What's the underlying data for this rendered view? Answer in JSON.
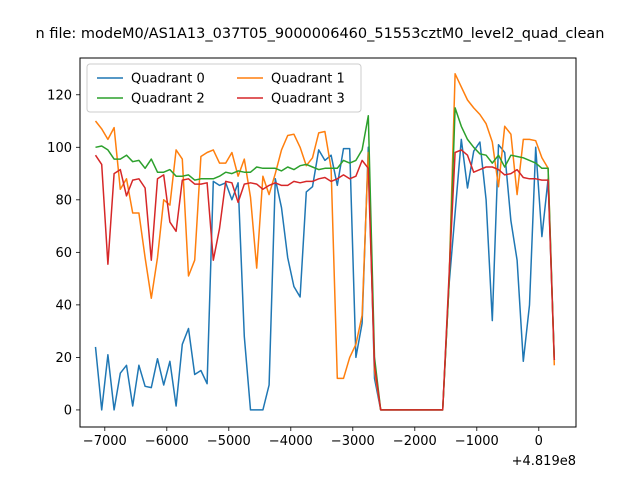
{
  "chart_data": {
    "type": "line",
    "title": "n file: modeM0/AS1A13_037T05_9000006460_51553cztM0_level2_quad_clean",
    "xlabel": "",
    "ylabel": "",
    "x_offset_label": "+4.819e8",
    "xlim": [
      -7400,
      600
    ],
    "ylim": [
      -6.5,
      134
    ],
    "xticks": [
      -7000,
      -6000,
      -5000,
      -4000,
      -3000,
      -2000,
      -1000,
      0
    ],
    "xtick_labels": [
      "−7000",
      "−6000",
      "−5000",
      "−4000",
      "−3000",
      "−2000",
      "−1000",
      "0"
    ],
    "yticks": [
      0,
      20,
      40,
      60,
      80,
      100,
      120
    ],
    "ytick_labels": [
      "0",
      "20",
      "40",
      "60",
      "80",
      "100",
      "120"
    ],
    "grid": false,
    "legend_position": "upper-left",
    "legend_columns": 2,
    "series": [
      {
        "name": "Quadrant 0",
        "color": "#1f77b4",
        "x": [
          -7150,
          -7050,
          -6950,
          -6850,
          -6750,
          -6650,
          -6550,
          -6450,
          -6350,
          -6250,
          -6150,
          -6050,
          -5950,
          -5850,
          -5750,
          -5650,
          -5550,
          -5450,
          -5350,
          -5250,
          -5150,
          -5050,
          -4950,
          -4850,
          -4750,
          -4650,
          -4550,
          -4450,
          -4350,
          -4250,
          -4150,
          -4050,
          -3950,
          -3850,
          -3750,
          -3650,
          -3550,
          -3450,
          -3350,
          -3250,
          -3150,
          -3050,
          -2950,
          -2850,
          -2750,
          -2650,
          -2550,
          -2450,
          -2350,
          -2250,
          -2150,
          -2050,
          -1950,
          -1850,
          -1750,
          -1650,
          -1550,
          -1450,
          -1350,
          -1250,
          -1150,
          -1050,
          -950,
          -850,
          -750,
          -650,
          -550,
          -450,
          -350,
          -250,
          -150,
          -50,
          50,
          150,
          250
        ],
        "y": [
          24,
          0,
          21,
          0,
          14,
          17,
          1.5,
          17,
          9,
          8.5,
          19.5,
          9.5,
          18.5,
          1.5,
          25,
          31,
          13.5,
          15,
          10,
          87,
          85.5,
          86.5,
          80,
          86.5,
          28,
          0,
          0,
          0,
          9.5,
          88,
          77,
          58,
          47,
          43,
          83,
          85,
          99,
          95,
          97,
          85.5,
          99.5,
          99.5,
          20,
          33,
          100,
          12,
          0,
          0,
          0,
          0,
          0,
          0,
          0,
          0,
          0,
          0,
          0,
          47,
          75,
          103,
          84.5,
          98.5,
          102,
          80,
          34,
          101,
          98,
          72,
          57,
          18.5,
          40,
          100,
          66,
          88,
          19
        ]
      },
      {
        "name": "Quadrant 1",
        "color": "#ff7f0e",
        "x": [
          -7150,
          -7050,
          -6950,
          -6850,
          -6750,
          -6650,
          -6550,
          -6450,
          -6350,
          -6250,
          -6150,
          -6050,
          -5950,
          -5850,
          -5750,
          -5650,
          -5550,
          -5450,
          -5350,
          -5250,
          -5150,
          -5050,
          -4950,
          -4850,
          -4750,
          -4650,
          -4550,
          -4450,
          -4350,
          -4250,
          -4150,
          -4050,
          -3950,
          -3850,
          -3750,
          -3650,
          -3550,
          -3450,
          -3350,
          -3250,
          -3150,
          -3050,
          -2950,
          -2850,
          -2750,
          -2650,
          -2550,
          -2450,
          -2350,
          -2250,
          -2150,
          -2050,
          -1950,
          -1850,
          -1750,
          -1650,
          -1550,
          -1450,
          -1350,
          -1250,
          -1150,
          -1050,
          -950,
          -850,
          -750,
          -650,
          -550,
          -450,
          -350,
          -250,
          -150,
          -50,
          50,
          150,
          250
        ],
        "y": [
          110,
          107,
          103,
          107.5,
          84,
          88,
          75,
          75,
          58,
          42.5,
          58,
          80,
          78,
          99,
          95.5,
          51,
          57,
          96.5,
          98,
          99,
          94,
          94,
          98,
          89,
          95.5,
          81,
          54,
          89,
          82,
          90,
          99,
          104.5,
          105,
          100,
          93,
          96,
          105.5,
          106,
          92,
          12,
          12,
          20,
          25,
          36,
          98,
          15,
          0,
          0,
          0,
          0,
          0,
          0,
          0,
          0,
          0,
          0,
          0,
          47,
          128,
          123,
          118,
          115,
          112.5,
          109,
          102,
          85,
          108,
          105,
          82,
          103,
          103,
          102.5,
          96,
          92,
          17
        ]
      },
      {
        "name": "Quadrant 2",
        "color": "#2ca02c",
        "x": [
          -7150,
          -7050,
          -6950,
          -6850,
          -6750,
          -6650,
          -6550,
          -6450,
          -6350,
          -6250,
          -6150,
          -6050,
          -5950,
          -5850,
          -5750,
          -5650,
          -5550,
          -5450,
          -5350,
          -5250,
          -5150,
          -5050,
          -4950,
          -4850,
          -4750,
          -4650,
          -4550,
          -4450,
          -4350,
          -4250,
          -4150,
          -4050,
          -3950,
          -3850,
          -3750,
          -3650,
          -3550,
          -3450,
          -3350,
          -3250,
          -3150,
          -3050,
          -2950,
          -2850,
          -2750,
          -2650,
          -2550,
          -2450,
          -2350,
          -2250,
          -2150,
          -2050,
          -1950,
          -1850,
          -1750,
          -1650,
          -1550,
          -1450,
          -1350,
          -1250,
          -1150,
          -1050,
          -950,
          -850,
          -750,
          -650,
          -550,
          -450,
          -350,
          -250,
          -150,
          -50,
          50,
          150,
          250
        ],
        "y": [
          100,
          100.5,
          99,
          95.5,
          95.5,
          97,
          94.5,
          95,
          92,
          95.5,
          90.5,
          90.5,
          91.5,
          89,
          89,
          89.5,
          87.5,
          88,
          88,
          88,
          89,
          90.5,
          90,
          91,
          90.5,
          90.5,
          92.5,
          92,
          92,
          92,
          91,
          92.5,
          91.5,
          93,
          93.5,
          92.5,
          91.5,
          92,
          92,
          92,
          95,
          94,
          95,
          99,
          112,
          20,
          0,
          0,
          0,
          0,
          0,
          0,
          0,
          0,
          0,
          0,
          0,
          47,
          115,
          108,
          103,
          100,
          97.5,
          97,
          94,
          97,
          92.5,
          97,
          96.5,
          96,
          95,
          94,
          92,
          92,
          19
        ]
      },
      {
        "name": "Quadrant 3",
        "color": "#d62728",
        "x": [
          -7150,
          -7050,
          -6950,
          -6850,
          -6750,
          -6650,
          -6550,
          -6450,
          -6350,
          -6250,
          -6150,
          -6050,
          -5950,
          -5850,
          -5750,
          -5650,
          -5550,
          -5450,
          -5350,
          -5250,
          -5150,
          -5050,
          -4950,
          -4850,
          -4750,
          -4650,
          -4550,
          -4450,
          -4350,
          -4250,
          -4150,
          -4050,
          -3950,
          -3850,
          -3750,
          -3650,
          -3550,
          -3450,
          -3350,
          -3250,
          -3150,
          -3050,
          -2950,
          -2850,
          -2750,
          -2650,
          -2550,
          -2450,
          -2350,
          -2250,
          -2150,
          -2050,
          -1950,
          -1850,
          -1750,
          -1650,
          -1550,
          -1450,
          -1350,
          -1250,
          -1150,
          -1050,
          -950,
          -850,
          -750,
          -650,
          -550,
          -450,
          -350,
          -250,
          -150,
          -50,
          50,
          150,
          250
        ],
        "y": [
          97,
          93.5,
          55.5,
          90,
          91.5,
          81.5,
          87.5,
          88,
          84.5,
          57,
          88,
          89.5,
          71.5,
          68,
          87.5,
          88,
          86,
          86,
          86.5,
          57,
          69,
          87,
          86.5,
          79,
          86,
          86.5,
          86,
          84,
          85.5,
          86.5,
          85.5,
          85.5,
          87,
          86.5,
          87,
          87,
          88,
          88.5,
          87,
          88,
          89.5,
          88,
          89,
          95,
          92,
          17,
          0,
          0,
          0,
          0,
          0,
          0,
          0,
          0,
          0,
          0,
          0,
          50,
          98,
          99,
          97,
          90.5,
          91.5,
          92.5,
          92.5,
          91.5,
          89.5,
          90,
          91.5,
          88.5,
          88,
          88,
          87.5,
          87.5,
          19
        ]
      }
    ]
  }
}
